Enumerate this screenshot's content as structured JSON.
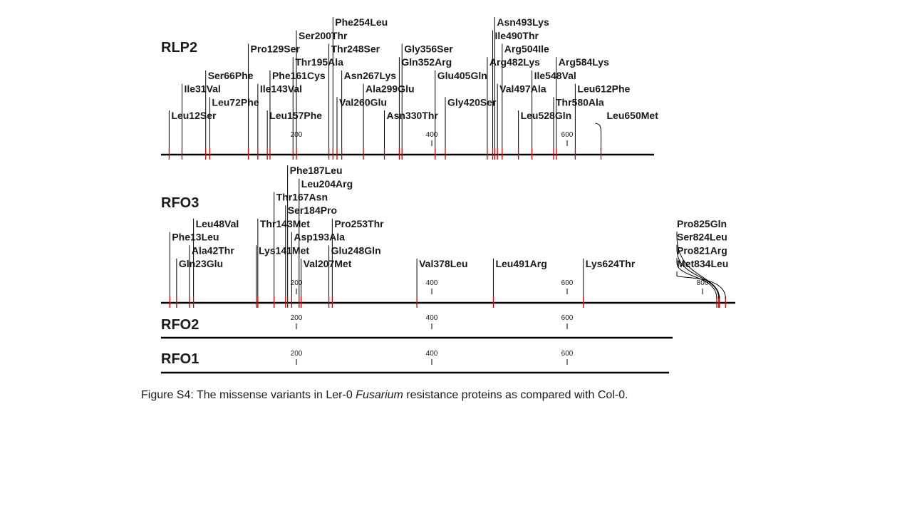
{
  "figure": {
    "caption_prefix": "Figure S4: The missense variants in Ler-0 ",
    "caption_italic": "Fusarium",
    "caption_suffix": " resistance proteins as compared with Col-0.",
    "colors": {
      "axis": "#000000",
      "mutation_mark": "#cc0000",
      "text": "#1a1a1a"
    },
    "tick_positions": [
      200,
      400,
      600,
      800
    ]
  },
  "proteins": [
    {
      "name": "RLP2",
      "ticks": [
        200,
        400,
        600
      ],
      "mutations": [
        {
          "label": "Leu12Ser",
          "pos": 12,
          "row": 0
        },
        {
          "label": "Ile31Val",
          "pos": 31,
          "row": 2
        },
        {
          "label": "Ser66Phe",
          "pos": 66,
          "row": 3
        },
        {
          "label": "Leu72Phe",
          "pos": 72,
          "row": 1
        },
        {
          "label": "Pro129Ser",
          "pos": 129,
          "row": 5
        },
        {
          "label": "Ile143Val",
          "pos": 143,
          "row": 2
        },
        {
          "label": "Leu157Phe",
          "pos": 157,
          "row": 0
        },
        {
          "label": "Phe161Cys",
          "pos": 161,
          "row": 3
        },
        {
          "label": "Thr195Ala",
          "pos": 195,
          "row": 4
        },
        {
          "label": "Ser200Thr",
          "pos": 200,
          "row": 6
        },
        {
          "label": "Phe254Leu",
          "pos": 254,
          "row": 7
        },
        {
          "label": "Thr248Ser",
          "pos": 248,
          "row": 5
        },
        {
          "label": "Val260Glu",
          "pos": 260,
          "row": 1
        },
        {
          "label": "Asn267Lys",
          "pos": 267,
          "row": 3
        },
        {
          "label": "Ala299Glu",
          "pos": 299,
          "row": 2
        },
        {
          "label": "Asn330Thr",
          "pos": 330,
          "row": 0
        },
        {
          "label": "Gln352Arg",
          "pos": 352,
          "row": 4
        },
        {
          "label": "Gly356Ser",
          "pos": 356,
          "row": 5
        },
        {
          "label": "Glu405Gln",
          "pos": 405,
          "row": 3
        },
        {
          "label": "Gly420Ser",
          "pos": 420,
          "row": 1
        },
        {
          "label": "Arg482Lys",
          "pos": 482,
          "row": 4
        },
        {
          "label": "Ile490Thr",
          "pos": 490,
          "row": 6
        },
        {
          "label": "Asn493Lys",
          "pos": 493,
          "row": 7
        },
        {
          "label": "Val497Ala",
          "pos": 497,
          "row": 2
        },
        {
          "label": "Arg504Ile",
          "pos": 504,
          "row": 5
        },
        {
          "label": "Leu528Gln",
          "pos": 528,
          "row": 0
        },
        {
          "label": "Ile548Val",
          "pos": 548,
          "row": 3
        },
        {
          "label": "Thr580Ala",
          "pos": 580,
          "row": 1
        },
        {
          "label": "Arg584Lys",
          "pos": 584,
          "row": 4
        },
        {
          "label": "Leu612Phe",
          "pos": 612,
          "row": 2
        },
        {
          "label": "Leu650Met",
          "pos": 650,
          "row": 0,
          "curve": true
        }
      ]
    },
    {
      "name": "RFO3",
      "ticks": [
        200,
        400,
        600,
        800
      ],
      "mutations": [
        {
          "label": "Phe13Leu",
          "pos": 13,
          "row": 2
        },
        {
          "label": "Gln23Glu",
          "pos": 23,
          "row": 0
        },
        {
          "label": "Ala42Thr",
          "pos": 42,
          "row": 1
        },
        {
          "label": "Leu48Val",
          "pos": 48,
          "row": 3
        },
        {
          "label": "Lys141Met",
          "pos": 141,
          "row": 1
        },
        {
          "label": "Thr143Met",
          "pos": 143,
          "row": 3
        },
        {
          "label": "Thr167Asn",
          "pos": 167,
          "row": 5
        },
        {
          "label": "Ser184Pro",
          "pos": 184,
          "row": 4
        },
        {
          "label": "Phe187Leu",
          "pos": 187,
          "row": 7
        },
        {
          "label": "Asp193Ala",
          "pos": 193,
          "row": 2
        },
        {
          "label": "Leu204Arg",
          "pos": 204,
          "row": 6
        },
        {
          "label": "Val207Met",
          "pos": 207,
          "row": 0
        },
        {
          "label": "Glu248Gln",
          "pos": 248,
          "row": 1
        },
        {
          "label": "Pro253Thr",
          "pos": 253,
          "row": 3
        },
        {
          "label": "Val378Leu",
          "pos": 378,
          "row": 0
        },
        {
          "label": "Leu491Arg",
          "pos": 491,
          "row": 0
        },
        {
          "label": "Lys624Thr",
          "pos": 624,
          "row": 0
        },
        {
          "label": "Met834Leu",
          "pos": 834,
          "row": 0,
          "curve": true
        },
        {
          "label": "Pro821Arg",
          "pos": 821,
          "row": 1,
          "curve": true
        },
        {
          "label": "Ser824Leu",
          "pos": 824,
          "row": 2,
          "curve": true
        },
        {
          "label": "Pro825Gln",
          "pos": 825,
          "row": 3,
          "curve": true
        }
      ]
    },
    {
      "name": "RFO2",
      "ticks": [
        200,
        400,
        600
      ],
      "mutations": []
    },
    {
      "name": "RFO1",
      "ticks": [
        200,
        400,
        600
      ],
      "mutations": []
    }
  ]
}
